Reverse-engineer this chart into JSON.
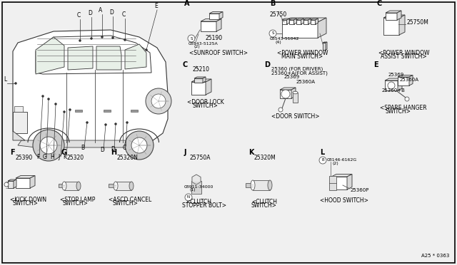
{
  "background_color": "#f0f0f0",
  "text_color": "#000000",
  "line_color": "#555555",
  "footnote": "A25 * 0363",
  "sections": {
    "A": {
      "label": "A",
      "pn1": "25190",
      "pn2": "S 08543-5125A",
      "pn3": "(2)",
      "cap": "<SUNROOF SWITCH>"
    },
    "B": {
      "label": "B",
      "pn1": "25750",
      "pn2": "S 08543-51042",
      "pn3": "(4)",
      "cap": "<POWER WINDOW\nMAIN SWITCH>"
    },
    "C_top": {
      "label": "C",
      "pn1": "25750M",
      "cap": "<POWER WINDOW\nASSIST SWITCH>"
    },
    "C_mid": {
      "label": "C",
      "pn1": "25210",
      "cap": "<DOOR LOCK\nSWITCH>"
    },
    "D": {
      "label": "D",
      "pn1": "25360 (FOR DRIVER)",
      "pn2": "25360+A(FOR ASSIST)",
      "pn3": "25369",
      "pn4": "25360A",
      "cap": "<DOOR SWITCH>"
    },
    "E": {
      "label": "E",
      "pn1": "25369",
      "pn2": "25360A",
      "pn3": "25360+B",
      "cap": "<SPARE HANGER\nSWITCH>"
    },
    "F": {
      "label": "F",
      "pn1": "25390",
      "cap": "<KICK DOWN\nSWITCH>"
    },
    "G": {
      "label": "G",
      "pn1": "25320",
      "cap": "<STOP LAMP\nSWITCH>"
    },
    "H": {
      "label": "H",
      "pn1": "25320N",
      "cap": "<ASCD CANCEL\nSWITCH>"
    },
    "J": {
      "label": "J",
      "pn1": "25750A",
      "pn2": "N 08911-34000",
      "pn3": "(1)",
      "cap": "<CLUTCH\nSTOPPER BOLT>"
    },
    "K": {
      "label": "K",
      "pn1": "25320M",
      "cap": "<CLUTCH\nSWITCH>"
    },
    "L": {
      "label": "L",
      "pn1": "B 08146-6162G",
      "pn2": "(2)",
      "pn3": "25360P",
      "cap": "<HOOD SWITCH>"
    }
  }
}
